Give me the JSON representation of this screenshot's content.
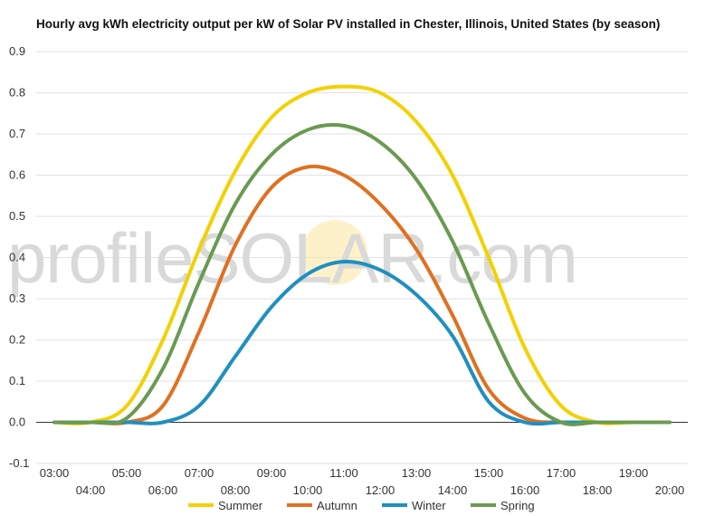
{
  "chart_data": {
    "type": "line",
    "title": "Hourly avg kWh electricity output per kW of Solar PV installed in Chester, Illinois, United States (by season)",
    "x_labels": [
      "03:00",
      "04:00",
      "05:00",
      "06:00",
      "07:00",
      "08:00",
      "09:00",
      "10:00",
      "11:00",
      "12:00",
      "13:00",
      "14:00",
      "15:00",
      "16:00",
      "17:00",
      "18:00",
      "19:00",
      "20:00"
    ],
    "x": [
      3,
      4,
      5,
      6,
      7,
      8,
      9,
      10,
      11,
      12,
      13,
      14,
      15,
      16,
      17,
      18,
      19,
      20
    ],
    "ylim": [
      -0.1,
      0.9
    ],
    "yticks": [
      "0.9",
      "0.8",
      "0.7",
      "0.6",
      "0.5",
      "0.4",
      "0.3",
      "0.2",
      "0.1",
      "0.0",
      "-0.1"
    ],
    "ytick_values": [
      0.9,
      0.8,
      0.7,
      0.6,
      0.5,
      0.4,
      0.3,
      0.2,
      0.1,
      0.0,
      -0.1
    ],
    "grid": true,
    "legend_position": "bottom",
    "watermark": "profileSOLAR.com",
    "series": [
      {
        "name": "Summer",
        "color": "#f4d000",
        "values": [
          0.0,
          0.0,
          0.04,
          0.2,
          0.42,
          0.61,
          0.74,
          0.8,
          0.815,
          0.8,
          0.73,
          0.6,
          0.4,
          0.18,
          0.04,
          0.0,
          0.0,
          0.0
        ]
      },
      {
        "name": "Autumn",
        "color": "#e07020",
        "values": [
          0.0,
          0.0,
          0.0,
          0.04,
          0.22,
          0.43,
          0.57,
          0.62,
          0.6,
          0.53,
          0.42,
          0.26,
          0.08,
          0.01,
          0.0,
          0.0,
          0.0,
          0.0
        ]
      },
      {
        "name": "Winter",
        "color": "#1f8fc0",
        "values": [
          0.0,
          0.0,
          0.0,
          0.0,
          0.04,
          0.16,
          0.28,
          0.36,
          0.39,
          0.37,
          0.31,
          0.21,
          0.05,
          0.0,
          0.0,
          0.0,
          0.0,
          0.0
        ]
      },
      {
        "name": "Spring",
        "color": "#6a9a50",
        "values": [
          0.0,
          0.0,
          0.01,
          0.13,
          0.34,
          0.53,
          0.65,
          0.71,
          0.72,
          0.68,
          0.59,
          0.44,
          0.24,
          0.07,
          0.0,
          0.0,
          0.0,
          0.0
        ]
      }
    ]
  }
}
